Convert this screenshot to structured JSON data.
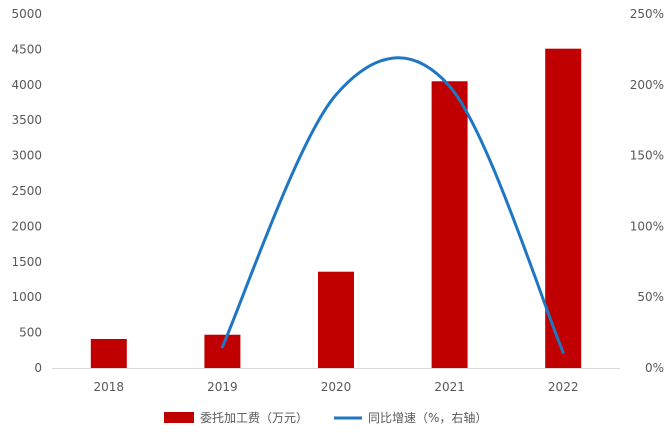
{
  "chart_data": {
    "type": "bar",
    "title": "",
    "xlabel": "",
    "ylabel": "",
    "categories": [
      "2018",
      "2019",
      "2020",
      "2021",
      "2022"
    ],
    "ylim": [
      0,
      5000
    ],
    "y_ticks": [
      "0",
      "500",
      "1000",
      "1500",
      "2000",
      "2500",
      "3000",
      "3500",
      "4000",
      "4500",
      "5000"
    ],
    "y2lim": [
      0,
      250
    ],
    "y2_ticks": [
      "0%",
      "50%",
      "100%",
      "150%",
      "200%",
      "250%"
    ],
    "grid": false,
    "legend_position": "bottom",
    "series": [
      {
        "name": "委托加工费（万元）",
        "type": "bar",
        "axis": "left",
        "color": "#C00000",
        "values": [
          410,
          470,
          1360,
          4050,
          4510
        ]
      },
      {
        "name": "同比增速（%，右轴）",
        "type": "line",
        "axis": "right",
        "color": "#1F77C4",
        "values": [
          null,
          15,
          193,
          199,
          11
        ]
      }
    ]
  }
}
